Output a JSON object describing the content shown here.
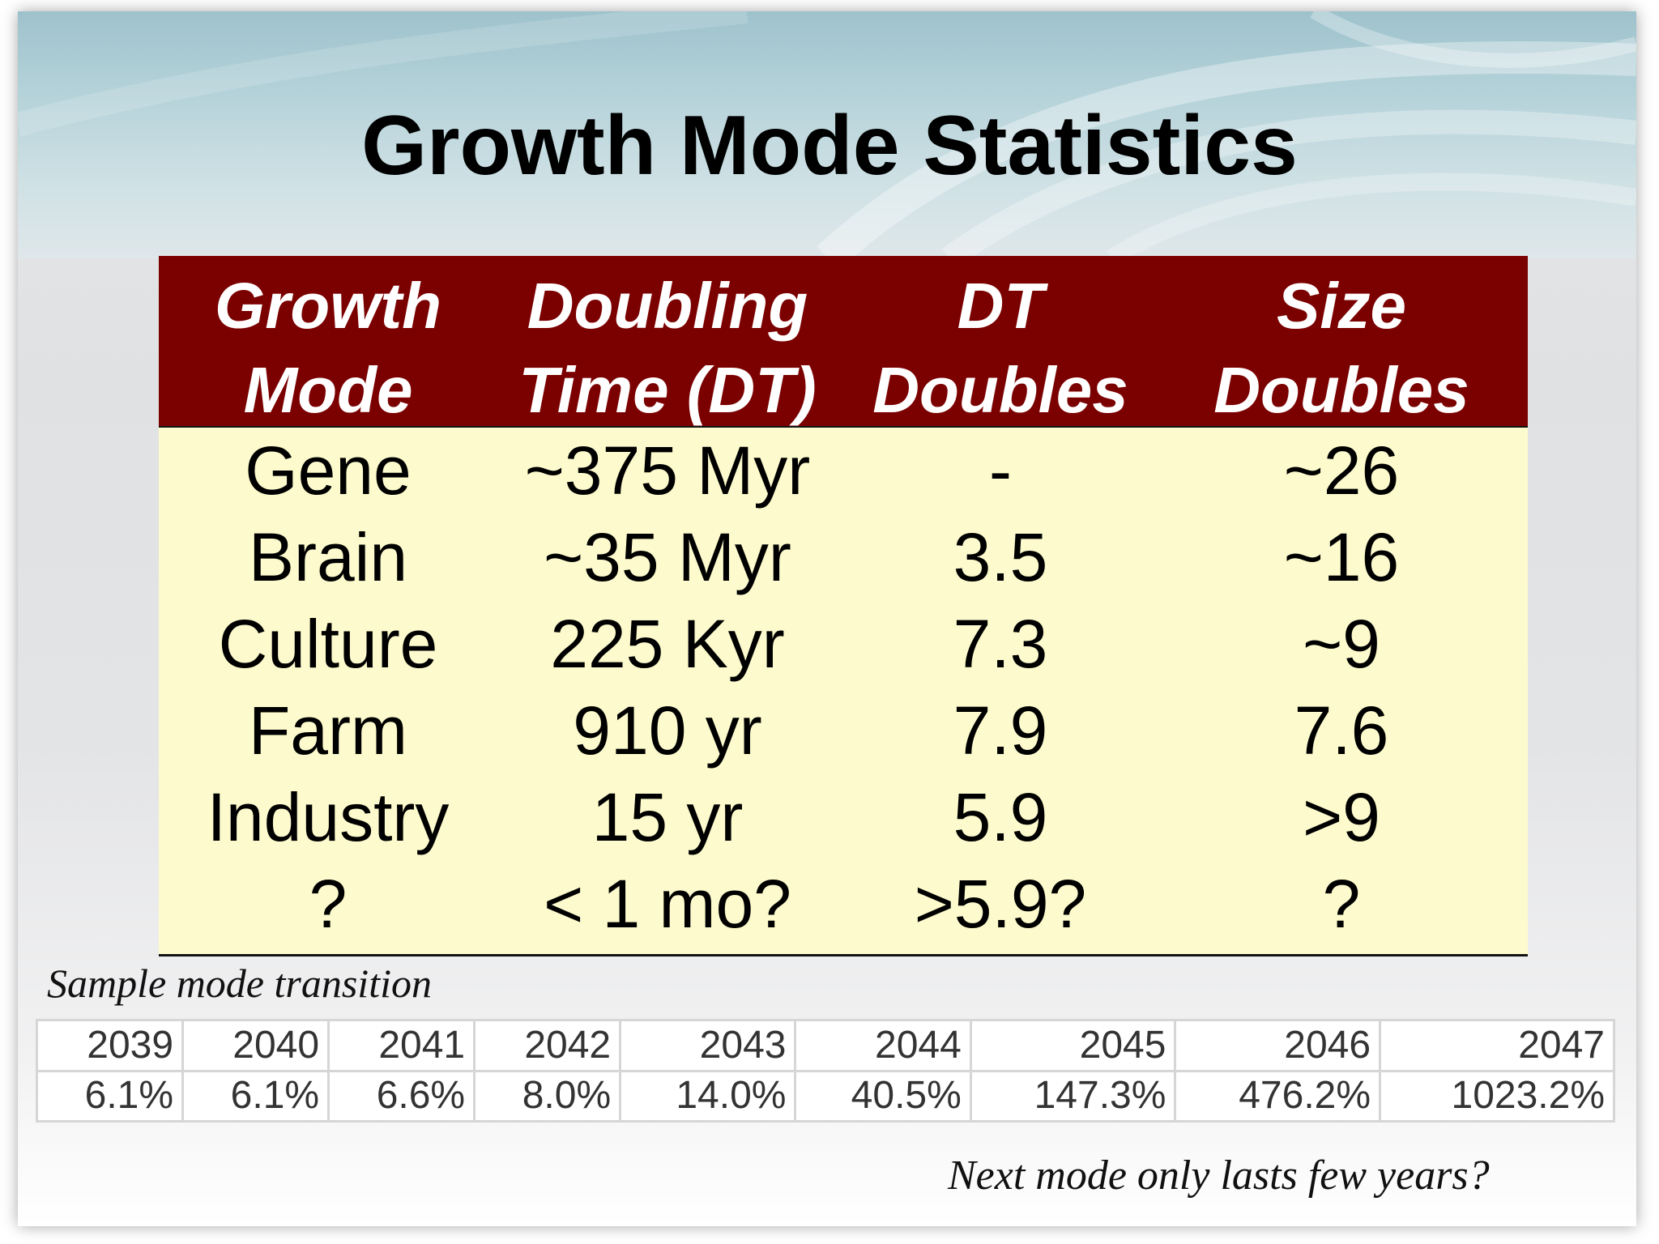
{
  "slide": {
    "title": "Growth Mode Statistics"
  },
  "table": {
    "headers": [
      {
        "line1": "Growth",
        "line2": "Mode"
      },
      {
        "line1": "Doubling",
        "line2": "Time (DT)"
      },
      {
        "line1": "DT",
        "line2": "Doubles"
      },
      {
        "line1": "Size",
        "line2": "Doubles"
      }
    ],
    "rows": [
      [
        "Gene",
        "~375 Myr",
        "-",
        "~26"
      ],
      [
        "Brain",
        "~35 Myr",
        "3.5",
        "~16"
      ],
      [
        "Culture",
        "225 Kyr",
        "7.3",
        "~9"
      ],
      [
        "Farm",
        "910 yr",
        "7.9",
        "7.6"
      ],
      [
        "Industry",
        "15 yr",
        "5.9",
        ">9"
      ],
      [
        "?",
        "< 1 mo?",
        ">5.9?",
        "?"
      ]
    ],
    "colors": {
      "header_bg": "#7b0000",
      "body_bg": "#fdfbcd",
      "header_text": "#ffffff"
    }
  },
  "sample": {
    "caption": "Sample mode transition",
    "years": [
      "2039",
      "2040",
      "2041",
      "2042",
      "2043",
      "2044",
      "2045",
      "2046",
      "2047"
    ],
    "rates": [
      "6.1%",
      "6.1%",
      "6.6%",
      "8.0%",
      "14.0%",
      "40.5%",
      "147.3%",
      "476.2%",
      "1023.2%"
    ]
  },
  "footer": {
    "note": "Next mode only lasts few years?"
  }
}
